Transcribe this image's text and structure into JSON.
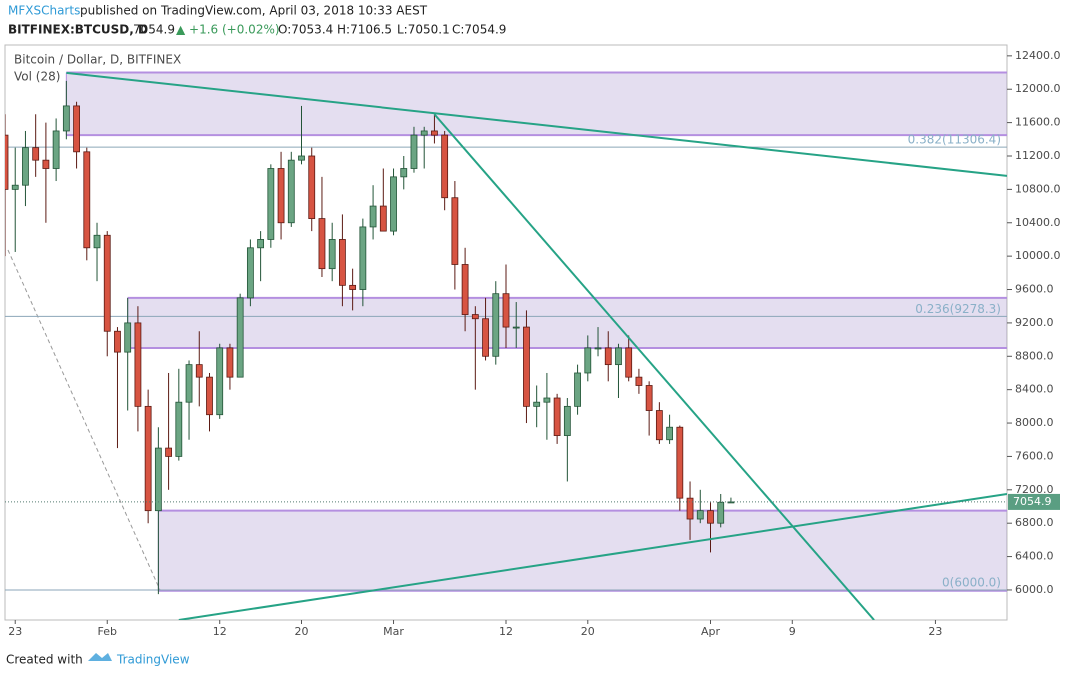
{
  "header": {
    "author": "MFXSCharts",
    "published": "published on TradingView.com, April 03, 2018 10:33 AEST",
    "symbol": "BITFINEX:BTCUSD, D",
    "price": "7054.9",
    "change": "▲ +1.6 (+0.02%)",
    "o": "O:7053.4",
    "h": "H:7106.5",
    "l": "L:7050.1",
    "c": "C:7054.9"
  },
  "footer": {
    "created": "Created with",
    "brand": "TradingView"
  },
  "chart_data": {
    "type": "candlestick",
    "title": "Bitcoin / Dollar, D, BITFINEX",
    "volume_label": "Vol (28)",
    "up_color": "#6ba583",
    "down_color": "#d75442",
    "x": [
      "2018-01-22",
      "2018-01-23",
      "2018-01-24",
      "2018-01-25",
      "2018-01-26",
      "2018-01-27",
      "2018-01-28",
      "2018-01-29",
      "2018-01-30",
      "2018-01-31",
      "2018-02-01",
      "2018-02-02",
      "2018-02-03",
      "2018-02-04",
      "2018-02-05",
      "2018-02-06",
      "2018-02-07",
      "2018-02-08",
      "2018-02-09",
      "2018-02-10",
      "2018-02-11",
      "2018-02-12",
      "2018-02-13",
      "2018-02-14",
      "2018-02-15",
      "2018-02-16",
      "2018-02-17",
      "2018-02-18",
      "2018-02-19",
      "2018-02-20",
      "2018-02-21",
      "2018-02-22",
      "2018-02-23",
      "2018-02-24",
      "2018-02-25",
      "2018-02-26",
      "2018-02-27",
      "2018-02-28",
      "2018-03-01",
      "2018-03-02",
      "2018-03-03",
      "2018-03-04",
      "2018-03-05",
      "2018-03-06",
      "2018-03-07",
      "2018-03-08",
      "2018-03-09",
      "2018-03-10",
      "2018-03-11",
      "2018-03-12",
      "2018-03-13",
      "2018-03-14",
      "2018-03-15",
      "2018-03-16",
      "2018-03-17",
      "2018-03-18",
      "2018-03-19",
      "2018-03-20",
      "2018-03-21",
      "2018-03-22",
      "2018-03-23",
      "2018-03-24",
      "2018-03-25",
      "2018-03-26",
      "2018-03-27",
      "2018-03-28",
      "2018-03-29",
      "2018-03-30",
      "2018-03-31",
      "2018-04-01",
      "2018-04-02",
      "2018-04-03"
    ],
    "open": [
      11450,
      10800,
      10850,
      11300,
      11150,
      11050,
      11500,
      11800,
      11250,
      10100,
      10250,
      9100,
      8850,
      9200,
      8200,
      6950,
      7700,
      7600,
      8250,
      8700,
      8550,
      8100,
      8900,
      8550,
      9500,
      10100,
      10200,
      11050,
      10400,
      11150,
      11200,
      10450,
      9850,
      10200,
      9650,
      9600,
      10350,
      10600,
      10300,
      10950,
      11050,
      11450,
      11500,
      11450,
      10700,
      9900,
      9300,
      9250,
      8800,
      9550,
      9150,
      9150,
      8200,
      8250,
      8300,
      7850,
      8200,
      8600,
      8900,
      8900,
      8700,
      8900,
      8550,
      8450,
      8150,
      7800,
      7950,
      7100,
      6850,
      6950,
      6800,
      7053.4
    ],
    "high": [
      11700,
      11300,
      11500,
      11700,
      11600,
      11650,
      12100,
      11850,
      11300,
      10400,
      10300,
      9150,
      9500,
      9400,
      8400,
      7950,
      8600,
      8650,
      8750,
      9100,
      8600,
      8950,
      8950,
      9550,
      10200,
      10300,
      11100,
      11250,
      11250,
      11800,
      11300,
      10950,
      10400,
      10500,
      9850,
      10450,
      10850,
      11050,
      11050,
      11200,
      11550,
      11550,
      11700,
      11500,
      10900,
      10100,
      9400,
      9500,
      9700,
      9900,
      9450,
      9350,
      8450,
      8600,
      8350,
      8300,
      8700,
      9050,
      9150,
      9100,
      8950,
      9050,
      8650,
      8500,
      8250,
      8100,
      7970,
      7300,
      7200,
      7050,
      7150,
      7106.5
    ],
    "low": [
      10000,
      10050,
      10600,
      10950,
      10400,
      10900,
      11400,
      11050,
      9950,
      9700,
      8800,
      7700,
      8150,
      7900,
      6800,
      5950,
      7200,
      7550,
      7800,
      8200,
      7900,
      8050,
      8400,
      8550,
      9400,
      9700,
      10100,
      10200,
      10350,
      11100,
      10300,
      9750,
      9700,
      9400,
      9350,
      9400,
      10200,
      10300,
      10250,
      10800,
      11000,
      11050,
      11350,
      10550,
      9600,
      9100,
      8400,
      8750,
      8700,
      8900,
      8900,
      8000,
      7950,
      7800,
      7750,
      7300,
      8100,
      8500,
      8800,
      8500,
      8300,
      8500,
      8350,
      7850,
      7750,
      7750,
      6950,
      6600,
      6800,
      6450,
      6750,
      7050.1
    ],
    "close": [
      10800,
      10850,
      11300,
      11150,
      11050,
      11500,
      11800,
      11250,
      10100,
      10250,
      9100,
      8850,
      9200,
      8200,
      6950,
      7700,
      7600,
      8250,
      8700,
      8550,
      8100,
      8900,
      8550,
      9500,
      10100,
      10200,
      11050,
      10400,
      11150,
      11200,
      10450,
      9850,
      10200,
      9650,
      9600,
      10350,
      10600,
      10300,
      10950,
      11050,
      11450,
      11500,
      11450,
      10700,
      9900,
      9300,
      9250,
      8800,
      9550,
      9150,
      9150,
      8200,
      8250,
      8300,
      7850,
      8200,
      8600,
      8900,
      8900,
      8700,
      8900,
      8550,
      8450,
      8150,
      7800,
      7950,
      7100,
      6850,
      6950,
      6800,
      7050,
      7054.9
    ],
    "last_price": {
      "value": 7054.9,
      "label": "7054.9"
    },
    "xlim": [
      "2018-01-22",
      "2018-04-30"
    ],
    "xticks": [
      {
        "value": "2018-01-23",
        "label": "23"
      },
      {
        "value": "2018-02-01",
        "label": "Feb"
      },
      {
        "value": "2018-02-12",
        "label": "12"
      },
      {
        "value": "2018-02-20",
        "label": "20"
      },
      {
        "value": "2018-03-01",
        "label": "Mar"
      },
      {
        "value": "2018-03-12",
        "label": "12"
      },
      {
        "value": "2018-03-20",
        "label": "20"
      },
      {
        "value": "2018-04-01",
        "label": "Apr"
      },
      {
        "value": "2018-04-09",
        "label": "9"
      },
      {
        "value": "2018-04-23",
        "label": "23"
      }
    ],
    "ylim": [
      5640,
      12530
    ],
    "yticks": [
      {
        "value": 6000,
        "label": "6000.0"
      },
      {
        "value": 6400,
        "label": "6400.0"
      },
      {
        "value": 6800,
        "label": "6800.0"
      },
      {
        "value": 7200,
        "label": "7200.0"
      },
      {
        "value": 7600,
        "label": "7600.0"
      },
      {
        "value": 8000,
        "label": "8000.0"
      },
      {
        "value": 8400,
        "label": "8400.0"
      },
      {
        "value": 8800,
        "label": "8800.0"
      },
      {
        "value": 9200,
        "label": "9200.0"
      },
      {
        "value": 9600,
        "label": "9600.0"
      },
      {
        "value": 10000,
        "label": "10000.0"
      },
      {
        "value": 10400,
        "label": "10400.0"
      },
      {
        "value": 10800,
        "label": "10800.0"
      },
      {
        "value": 11200,
        "label": "11200.0"
      },
      {
        "value": 11600,
        "label": "11600.0"
      },
      {
        "value": 12000,
        "label": "12000.0"
      },
      {
        "value": 12400,
        "label": "12400.0"
      }
    ],
    "fib_levels": [
      {
        "value": 11306.4,
        "label": "0.382(11306.4)"
      },
      {
        "value": 9278.3,
        "label": "0.236(9278.3)"
      },
      {
        "value": 6000,
        "label": "0(6000.0)"
      }
    ],
    "zones": [
      {
        "start": "2018-01-28",
        "top": 12200,
        "bottom": 11450
      },
      {
        "start": "2018-02-03",
        "top": 9500,
        "bottom": 8900
      },
      {
        "start": "2018-02-06",
        "top": 6950,
        "bottom": 5990
      }
    ],
    "trendlines": [
      [
        [
          "2018-01-28",
          12196
        ],
        [
          "2018-04-30",
          10962
        ]
      ],
      [
        [
          "2018-03-05",
          11700
        ],
        [
          "2018-04-17",
          5640
        ]
      ],
      [
        [
          "2018-02-08",
          5640
        ],
        [
          "2018-04-30",
          7150
        ]
      ]
    ]
  }
}
